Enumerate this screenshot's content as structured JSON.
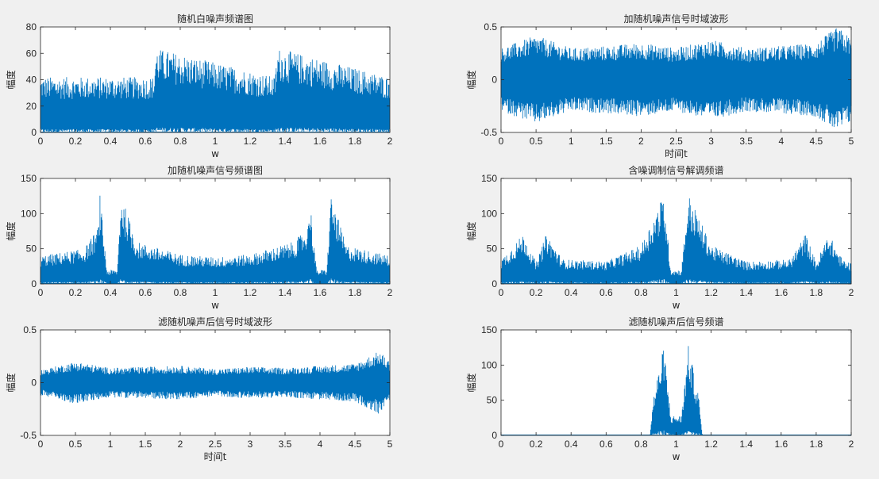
{
  "colors": {
    "background": "#f0f0f0",
    "axes_bg": "#ffffff",
    "series": "#0072bd",
    "text": "#262626"
  },
  "chart_data": [
    {
      "type": "line",
      "title": "随机白噪声频谱图",
      "xlabel": "w",
      "ylabel": "幅度",
      "xlim": [
        0,
        2
      ],
      "ylim": [
        0,
        80
      ],
      "xticks": [
        0,
        0.2,
        0.4,
        0.6,
        0.8,
        1,
        1.2,
        1.4,
        1.6,
        1.8,
        2
      ],
      "xticklabels": [
        "0",
        "0.2",
        "0.4",
        "0.6",
        "0.8",
        "1",
        "1.2",
        "1.4",
        "1.6",
        "1.8",
        "2"
      ],
      "yticks": [
        0,
        20,
        40,
        60,
        80
      ],
      "yticklabels": [
        "0",
        "20",
        "40",
        "60",
        "80"
      ],
      "envelope": {
        "x": [
          0,
          0.65,
          0.66,
          1.34,
          1.36,
          2
        ],
        "y": [
          42,
          42,
          64,
          42,
          64,
          42
        ]
      },
      "grid": false
    },
    {
      "type": "line",
      "title": "加随机噪声信号时域波形",
      "xlabel": "时间t",
      "ylabel": "幅度",
      "xlim": [
        0,
        5
      ],
      "ylim": [
        -0.5,
        0.5
      ],
      "xticks": [
        0,
        0.5,
        1,
        1.5,
        2,
        2.5,
        3,
        3.5,
        4,
        4.5,
        5
      ],
      "xticklabels": [
        "0",
        "0.5",
        "1",
        "1.5",
        "2",
        "2.5",
        "3",
        "3.5",
        "4",
        "4.5",
        "5"
      ],
      "yticks": [
        -0.5,
        0,
        0.5
      ],
      "yticklabels": [
        "-0.5",
        "0",
        "0.5"
      ],
      "envelope": {
        "x": [
          0,
          0.5,
          1,
          1.5,
          2,
          2.5,
          3,
          3.5,
          4,
          4.5,
          4.8,
          5
        ],
        "y": [
          0.3,
          0.42,
          0.3,
          0.32,
          0.35,
          0.3,
          0.38,
          0.3,
          0.32,
          0.35,
          0.5,
          0.4
        ]
      },
      "grid": false
    },
    {
      "type": "line",
      "title": "加随机噪声信号频谱图",
      "xlabel": "w",
      "ylabel": "幅度",
      "xlim": [
        0,
        2
      ],
      "ylim": [
        0,
        150
      ],
      "xticks": [
        0,
        0.2,
        0.4,
        0.6,
        0.8,
        1,
        1.2,
        1.4,
        1.6,
        1.8,
        2
      ],
      "xticklabels": [
        "0",
        "0.2",
        "0.4",
        "0.6",
        "0.8",
        "1",
        "1.2",
        "1.4",
        "1.6",
        "1.8",
        "2"
      ],
      "yticks": [
        0,
        50,
        100,
        150
      ],
      "yticklabels": [
        "0",
        "50",
        "100",
        "150"
      ],
      "envelope": {
        "x": [
          0,
          0.25,
          0.33,
          0.34,
          0.38,
          0.44,
          0.46,
          0.55,
          0.8,
          1.0,
          1.2,
          1.45,
          1.53,
          1.54,
          1.58,
          1.64,
          1.66,
          1.75,
          2
        ],
        "y": [
          40,
          50,
          80,
          128,
          20,
          20,
          128,
          60,
          42,
          38,
          42,
          60,
          80,
          128,
          20,
          20,
          128,
          55,
          40
        ]
      },
      "grid": false
    },
    {
      "type": "line",
      "title": "含噪调制信号解调频谱",
      "xlabel": "w",
      "ylabel": "幅度",
      "xlim": [
        0,
        2
      ],
      "ylim": [
        0,
        150
      ],
      "xticks": [
        0,
        0.2,
        0.4,
        0.6,
        0.8,
        1,
        1.2,
        1.4,
        1.6,
        1.8,
        2
      ],
      "xticklabels": [
        "0",
        "0.2",
        "0.4",
        "0.6",
        "0.8",
        "1",
        "1.2",
        "1.4",
        "1.6",
        "1.8",
        "2"
      ],
      "yticks": [
        0,
        50,
        100,
        150
      ],
      "yticklabels": [
        "0",
        "50",
        "100",
        "150"
      ],
      "envelope": {
        "x": [
          0,
          0.13,
          0.2,
          0.26,
          0.35,
          0.6,
          0.8,
          0.93,
          0.97,
          1.03,
          1.07,
          1.2,
          1.4,
          1.65,
          1.74,
          1.8,
          1.87,
          1.95,
          2
        ],
        "y": [
          35,
          72,
          30,
          72,
          35,
          32,
          55,
          128,
          20,
          20,
          128,
          55,
          32,
          35,
          72,
          30,
          72,
          35,
          30
        ]
      },
      "grid": false
    },
    {
      "type": "line",
      "title": "滤随机噪声后信号时域波形",
      "xlabel": "时间t",
      "ylabel": "幅度",
      "xlim": [
        0,
        5
      ],
      "ylim": [
        -0.5,
        0.5
      ],
      "xticks": [
        0,
        0.5,
        1,
        1.5,
        2,
        2.5,
        3,
        3.5,
        4,
        4.5,
        5
      ],
      "xticklabels": [
        "0",
        "0.5",
        "1",
        "1.5",
        "2",
        "2.5",
        "3",
        "3.5",
        "4",
        "4.5",
        "5"
      ],
      "yticks": [
        -0.5,
        0,
        0.5
      ],
      "yticklabels": [
        "-0.5",
        "0",
        "0.5"
      ],
      "envelope": {
        "x": [
          0,
          0.5,
          1,
          1.5,
          2,
          2.5,
          3,
          3.5,
          4,
          4.5,
          4.85,
          5
        ],
        "y": [
          0.12,
          0.2,
          0.14,
          0.15,
          0.16,
          0.13,
          0.15,
          0.14,
          0.16,
          0.18,
          0.3,
          0.2
        ]
      },
      "grid": false
    },
    {
      "type": "line",
      "title": "滤随机噪声后信号频谱",
      "xlabel": "w",
      "ylabel": "幅度",
      "xlim": [
        0,
        2
      ],
      "ylim": [
        0,
        150
      ],
      "xticks": [
        0,
        0.2,
        0.4,
        0.6,
        0.8,
        1,
        1.2,
        1.4,
        1.6,
        1.8,
        2
      ],
      "xticklabels": [
        "0",
        "0.2",
        "0.4",
        "0.6",
        "0.8",
        "1",
        "1.2",
        "1.4",
        "1.6",
        "1.8",
        "2"
      ],
      "yticks": [
        0,
        50,
        100,
        150
      ],
      "yticklabels": [
        "0",
        "50",
        "100",
        "150"
      ],
      "envelope": {
        "x": [
          0,
          0.85,
          0.87,
          0.93,
          0.97,
          1.03,
          1.07,
          1.13,
          1.15,
          2
        ],
        "y": [
          0,
          0,
          55,
          128,
          28,
          28,
          128,
          55,
          0,
          0
        ]
      },
      "grid": false
    }
  ]
}
